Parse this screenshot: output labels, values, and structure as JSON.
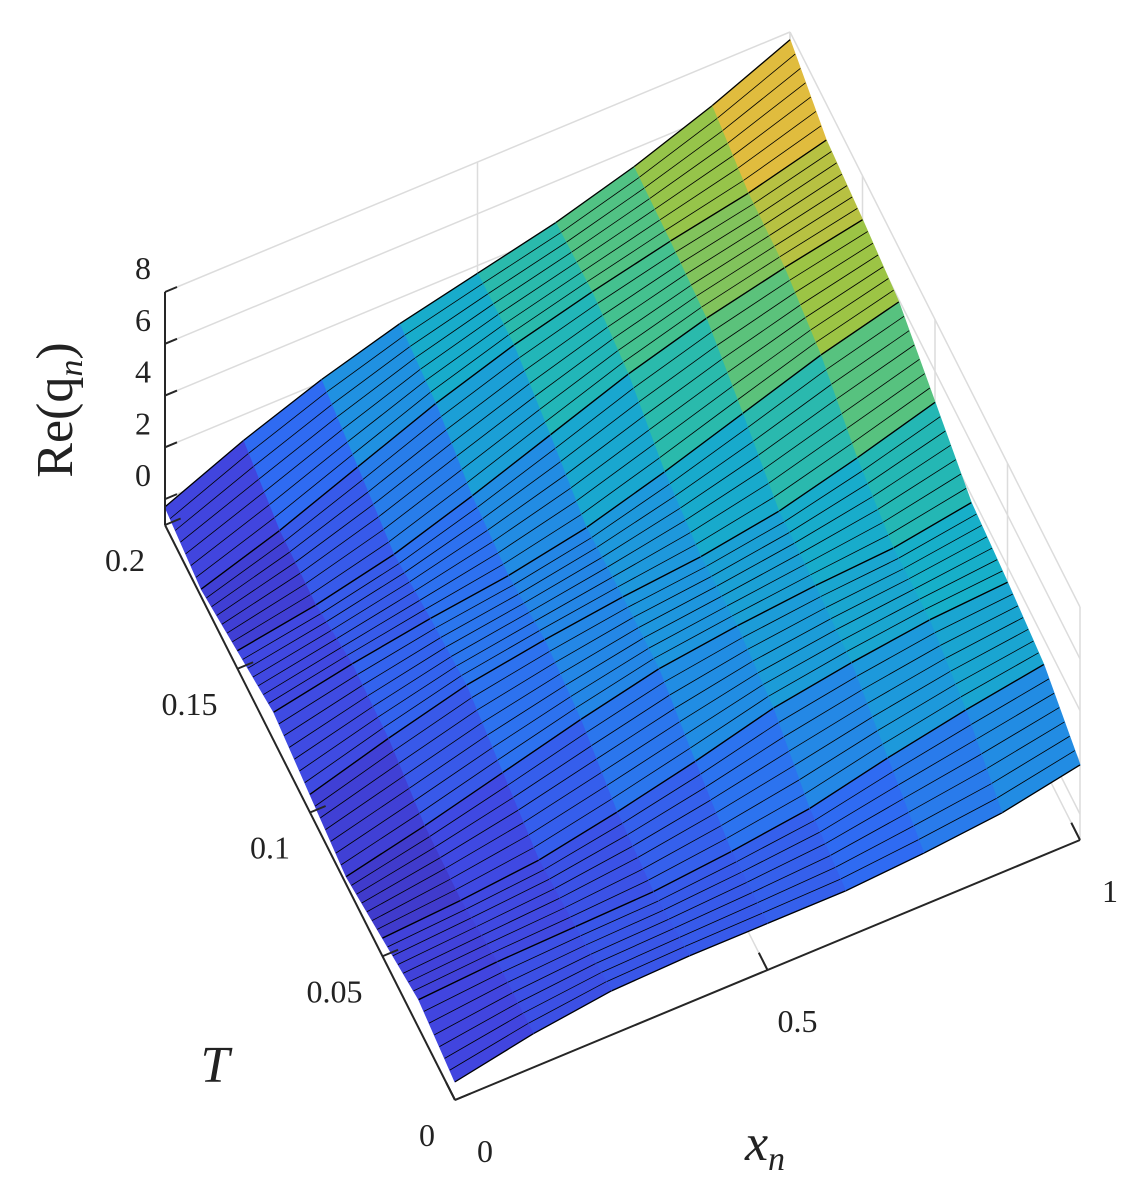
{
  "chart_data": {
    "type": "surface",
    "xlabel": {
      "text": "x",
      "sub": "n"
    },
    "ylabel": "T",
    "zlabel": {
      "text": "Re(q",
      "sub": "n",
      "close": ")"
    },
    "x": [
      0,
      0.125,
      0.25,
      0.375,
      0.5,
      0.625,
      0.75,
      0.875,
      1
    ],
    "y": [
      0,
      0.025,
      0.05,
      0.075,
      0.1,
      0.125,
      0.15,
      0.175,
      0.2
    ],
    "z": [
      [
        -0.3,
        0.3,
        0.7,
        0.8,
        0.8,
        0.8,
        1.0,
        1.3,
        1.9
      ],
      [
        0.1,
        0.3,
        0.4,
        0.5,
        0.8,
        1.2,
        1.9,
        2.5,
        3.0
      ],
      [
        -0.3,
        -0.1,
        0.2,
        0.8,
        1.5,
        2.3,
        2.8,
        3.2,
        3.4
      ],
      [
        -0.7,
        0.0,
        0.8,
        1.6,
        2.3,
        2.7,
        3.0,
        3.2,
        3.7
      ],
      [
        -0.3,
        0.6,
        1.4,
        1.9,
        2.3,
        2.6,
        3.1,
        3.9,
        4.8
      ],
      [
        0.1,
        0.7,
        1.2,
        1.6,
        2.2,
        3.1,
        4.1,
        5.1,
        5.9
      ],
      [
        -0.3,
        0.2,
        0.9,
        1.9,
        3.0,
        4.1,
        5.0,
        5.7,
        6.3
      ],
      [
        -0.7,
        0.3,
        1.5,
        2.7,
        3.7,
        4.5,
        5.2,
        5.8,
        6.6
      ],
      [
        -0.3,
        1.0,
        2.1,
        3.0,
        3.7,
        4.4,
        5.3,
        6.4,
        7.7
      ]
    ],
    "xlim": [
      0,
      1
    ],
    "ylim": [
      0,
      0.2
    ],
    "zlim": [
      -1,
      8
    ],
    "xticks": [
      0,
      0.5,
      1
    ],
    "yticks": [
      0,
      0.05,
      0.1,
      0.15,
      0.2
    ],
    "zticks": [
      0,
      2,
      4,
      6,
      8
    ],
    "grid": true,
    "colormap": [
      "#3e26a8",
      "#4146e0",
      "#2f6cf2",
      "#1f93e0",
      "#16b2c6",
      "#3ec194",
      "#9cc445",
      "#f4ba3c",
      "#f9fb15"
    ],
    "edgecolor": "#000000"
  }
}
